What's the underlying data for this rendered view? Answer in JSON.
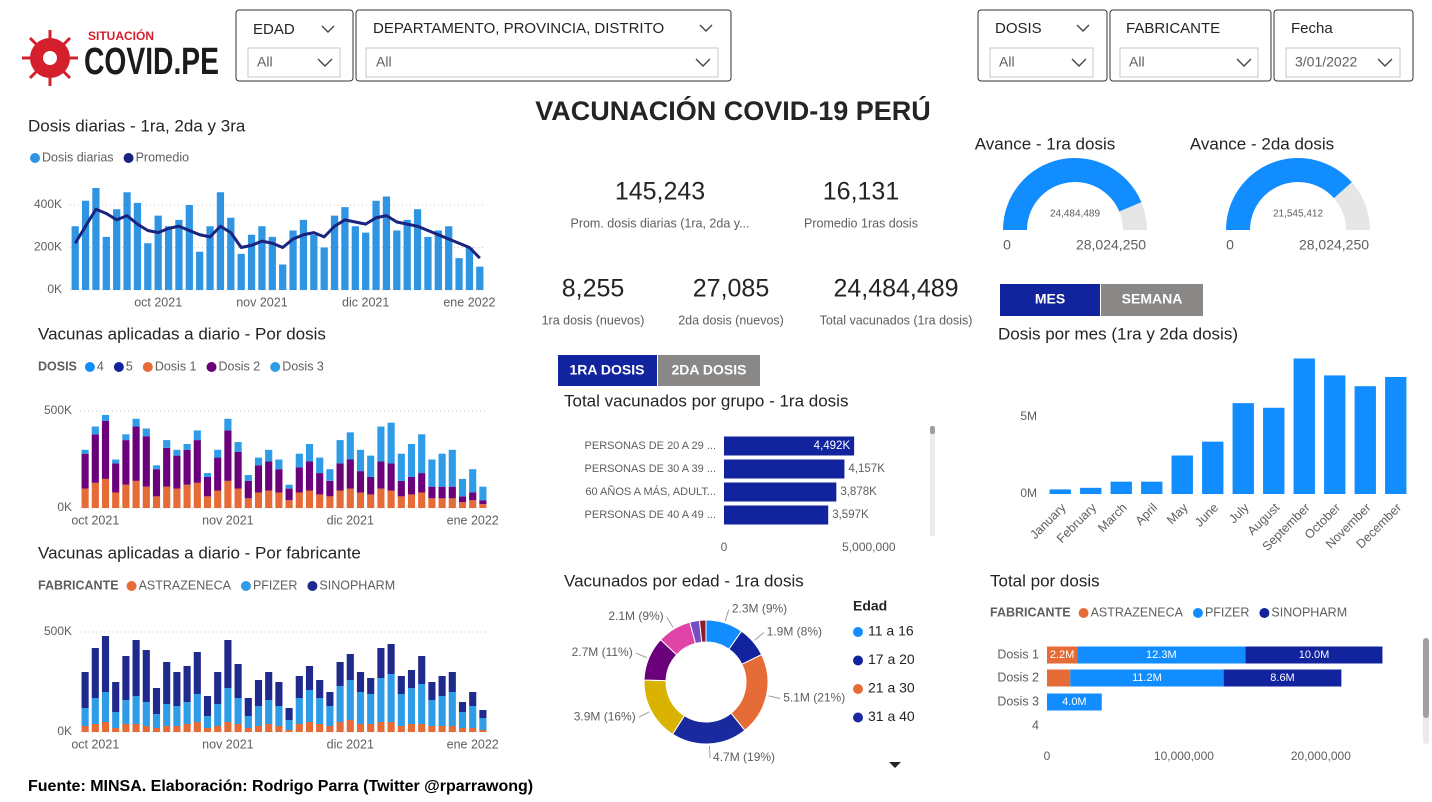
{
  "logo": {
    "small": "SITUACIÓN",
    "big": "COVID.PE"
  },
  "filters": [
    {
      "label": "EDAD",
      "value": "All"
    },
    {
      "label": "DEPARTAMENTO, PROVINCIA, DISTRITO",
      "value": "All"
    },
    {
      "label": "DOSIS",
      "value": "All"
    },
    {
      "label": "FABRICANTE",
      "value": "All"
    },
    {
      "label": "Fecha",
      "value": "3/01/2022"
    }
  ],
  "title": "VACUNACIÓN COVID-19 PERÚ",
  "kpis": [
    {
      "value": "145,243",
      "label": "Prom. dosis diarias (1ra, 2da y..."
    },
    {
      "value": "16,131",
      "label": "Promedio 1ras dosis"
    },
    {
      "value": "8,255",
      "label": "1ra dosis (nuevos)"
    },
    {
      "value": "27,085",
      "label": "2da dosis (nuevos)"
    },
    {
      "value": "24,484,489",
      "label": "Total vacunados (1ra dosis)"
    }
  ],
  "toggles": {
    "period": [
      "MES",
      "SEMANA"
    ],
    "dose": [
      "1RA DOSIS",
      "2DA DOSIS"
    ]
  },
  "footer": "Fuente: MINSA. Elaboración: Rodrigo Parra (Twitter @rparrawong)",
  "chart_data": [
    {
      "type": "bar",
      "title": "Dosis diarias - 1ra, 2da y 3ra",
      "grid": true,
      "categories": [
        null,
        null,
        null,
        null,
        null,
        null,
        null,
        null,
        "oct 2021",
        null,
        null,
        null,
        null,
        null,
        null,
        null,
        null,
        null,
        "nov 2021",
        null,
        null,
        null,
        null,
        null,
        null,
        null,
        null,
        null,
        "dic 2021",
        null,
        null,
        null,
        null,
        null,
        null,
        null,
        null,
        null,
        "ene 2022",
        null
      ],
      "ylim": [
        0,
        520000
      ],
      "yticks": [
        {
          "value": 0,
          "label": "0K"
        },
        {
          "value": 200000,
          "label": "200K"
        },
        {
          "value": 400000,
          "label": "400K"
        }
      ],
      "series": [
        {
          "name": "Dosis diarias",
          "type": "bar",
          "color": "#2F95E3",
          "values": [
            300000,
            420000,
            480000,
            250000,
            380000,
            460000,
            410000,
            220000,
            350000,
            300000,
            330000,
            400000,
            180000,
            300000,
            460000,
            340000,
            170000,
            260000,
            300000,
            250000,
            120000,
            280000,
            330000,
            260000,
            200000,
            350000,
            390000,
            300000,
            270000,
            420000,
            440000,
            280000,
            330000,
            380000,
            250000,
            280000,
            300000,
            150000,
            200000,
            110000
          ]
        },
        {
          "name": "Promedio",
          "type": "line",
          "color": "#1A237E",
          "values": [
            220000,
            300000,
            380000,
            360000,
            330000,
            350000,
            310000,
            280000,
            270000,
            290000,
            300000,
            280000,
            260000,
            250000,
            300000,
            270000,
            200000,
            210000,
            230000,
            220000,
            200000,
            240000,
            260000,
            270000,
            250000,
            300000,
            330000,
            320000,
            310000,
            340000,
            350000,
            320000,
            310000,
            300000,
            280000,
            260000,
            240000,
            220000,
            200000,
            150000
          ]
        }
      ]
    },
    {
      "type": "bar",
      "stacked": true,
      "title": "Vacunas aplicadas a diario - Por dosis",
      "legend_title": "DOSIS",
      "grid": true,
      "categories": [
        null,
        "oct 2021",
        null,
        null,
        null,
        null,
        null,
        null,
        null,
        null,
        null,
        null,
        null,
        null,
        "nov 2021",
        null,
        null,
        null,
        null,
        null,
        null,
        null,
        null,
        null,
        null,
        null,
        "dic 2021",
        null,
        null,
        null,
        null,
        null,
        null,
        null,
        null,
        null,
        null,
        null,
        "ene 2022",
        null
      ],
      "ylim": [
        0,
        580000
      ],
      "yticks": [
        {
          "value": 0,
          "label": "0K"
        },
        {
          "value": 500000,
          "label": "500K"
        }
      ],
      "series": [
        {
          "name": "4",
          "type": "bar",
          "color": "#118DFF",
          "values": [
            0,
            0,
            0,
            0,
            0,
            0,
            0,
            0,
            0,
            0,
            0,
            0,
            0,
            0,
            0,
            0,
            0,
            0,
            0,
            0,
            0,
            0,
            0,
            0,
            0,
            0,
            0,
            0,
            0,
            0,
            0,
            0,
            0,
            0,
            0,
            0,
            0,
            0,
            0,
            0
          ]
        },
        {
          "name": "5",
          "type": "bar",
          "color": "#12239E",
          "values": [
            0,
            0,
            0,
            0,
            0,
            0,
            0,
            0,
            0,
            0,
            0,
            0,
            0,
            0,
            0,
            0,
            0,
            0,
            0,
            0,
            0,
            0,
            0,
            0,
            0,
            0,
            0,
            0,
            0,
            0,
            0,
            0,
            0,
            0,
            0,
            0,
            0,
            0,
            0,
            0
          ]
        },
        {
          "name": "Dosis 1",
          "type": "bar",
          "color": "#E66C37",
          "values": [
            100000,
            130000,
            150000,
            80000,
            120000,
            140000,
            110000,
            60000,
            110000,
            100000,
            120000,
            130000,
            60000,
            90000,
            140000,
            100000,
            50000,
            80000,
            90000,
            80000,
            40000,
            80000,
            90000,
            70000,
            60000,
            90000,
            100000,
            80000,
            70000,
            100000,
            90000,
            60000,
            70000,
            80000,
            50000,
            50000,
            50000,
            30000,
            40000,
            20000
          ]
        },
        {
          "name": "Dosis 2",
          "type": "bar",
          "color": "#6B007B",
          "values": [
            180000,
            250000,
            300000,
            150000,
            230000,
            280000,
            260000,
            140000,
            200000,
            170000,
            180000,
            220000,
            100000,
            170000,
            260000,
            190000,
            90000,
            140000,
            150000,
            120000,
            60000,
            130000,
            150000,
            110000,
            80000,
            140000,
            150000,
            110000,
            90000,
            140000,
            140000,
            80000,
            90000,
            100000,
            60000,
            60000,
            60000,
            30000,
            40000,
            20000
          ]
        },
        {
          "name": "Dosis 3",
          "type": "bar",
          "color": "#2F9CE8",
          "values": [
            20000,
            40000,
            30000,
            20000,
            30000,
            40000,
            40000,
            20000,
            40000,
            30000,
            30000,
            50000,
            20000,
            40000,
            60000,
            50000,
            30000,
            40000,
            60000,
            50000,
            20000,
            70000,
            90000,
            80000,
            60000,
            120000,
            140000,
            110000,
            110000,
            180000,
            210000,
            140000,
            170000,
            200000,
            140000,
            170000,
            190000,
            90000,
            120000,
            70000
          ]
        }
      ]
    },
    {
      "type": "bar",
      "stacked": true,
      "title": "Vacunas aplicadas a diario - Por fabricante",
      "legend_title": "FABRICANTE",
      "grid": true,
      "categories": [
        null,
        "oct 2021",
        null,
        null,
        null,
        null,
        null,
        null,
        null,
        null,
        null,
        null,
        null,
        null,
        "nov 2021",
        null,
        null,
        null,
        null,
        null,
        null,
        null,
        null,
        null,
        null,
        null,
        "dic 2021",
        null,
        null,
        null,
        null,
        null,
        null,
        null,
        null,
        null,
        null,
        null,
        "ene 2022",
        null
      ],
      "ylim": [
        0,
        610000
      ],
      "yticks": [
        {
          "value": 0,
          "label": "0K"
        },
        {
          "value": 500000,
          "label": "500K"
        }
      ],
      "series": [
        {
          "name": "ASTRAZENECA",
          "type": "bar",
          "color": "#E66C37",
          "values": [
            30000,
            40000,
            50000,
            20000,
            40000,
            40000,
            30000,
            20000,
            30000,
            30000,
            40000,
            50000,
            20000,
            30000,
            50000,
            40000,
            20000,
            30000,
            40000,
            30000,
            10000,
            40000,
            50000,
            40000,
            30000,
            50000,
            60000,
            40000,
            40000,
            50000,
            50000,
            30000,
            40000,
            40000,
            30000,
            30000,
            30000,
            20000,
            20000,
            10000
          ]
        },
        {
          "name": "PFIZER",
          "type": "bar",
          "color": "#2F9CE8",
          "values": [
            90000,
            130000,
            150000,
            80000,
            120000,
            140000,
            120000,
            70000,
            110000,
            100000,
            110000,
            140000,
            60000,
            110000,
            170000,
            130000,
            60000,
            100000,
            120000,
            100000,
            50000,
            130000,
            160000,
            130000,
            100000,
            180000,
            200000,
            160000,
            150000,
            220000,
            240000,
            160000,
            180000,
            200000,
            130000,
            150000,
            170000,
            80000,
            110000,
            60000
          ]
        },
        {
          "name": "SINOPHARM",
          "type": "bar",
          "color": "#1F2A8C",
          "values": [
            180000,
            250000,
            280000,
            150000,
            220000,
            280000,
            260000,
            130000,
            210000,
            170000,
            180000,
            210000,
            100000,
            160000,
            240000,
            170000,
            90000,
            130000,
            140000,
            120000,
            60000,
            110000,
            120000,
            90000,
            70000,
            120000,
            130000,
            100000,
            80000,
            150000,
            150000,
            90000,
            90000,
            140000,
            90000,
            100000,
            100000,
            50000,
            70000,
            40000
          ]
        }
      ]
    },
    {
      "type": "gauge",
      "title": "Avance - 1ra dosis",
      "values": [
        24484489
      ],
      "value_labels": [
        "24,484,489"
      ],
      "ylim": [
        0,
        28024250
      ],
      "yticks": [
        0,
        {
          "value": 28024250,
          "label": "28,024,250"
        }
      ],
      "color": "#118DFF",
      "track_color": "#E6E6E6"
    },
    {
      "type": "gauge",
      "title": "Avance - 2da dosis",
      "values": [
        21545412
      ],
      "value_labels": [
        "21,545,412"
      ],
      "ylim": [
        0,
        28024250
      ],
      "yticks": [
        0,
        {
          "value": 28024250,
          "label": "28,024,250"
        }
      ],
      "color": "#118DFF",
      "track_color": "#E6E6E6"
    },
    {
      "type": "bar",
      "title": "Dosis por mes (1ra y 2da dosis)",
      "color": "#118DFF",
      "categories": [
        "January",
        "February",
        "March",
        "April",
        "May",
        "June",
        "July",
        "August",
        "September",
        "October",
        "November",
        "December"
      ],
      "values": [
        300000,
        400000,
        800000,
        800000,
        2500000,
        3400000,
        5900000,
        5600000,
        8800000,
        7700000,
        7000000,
        7600000
      ],
      "ylim": [
        0,
        9000000
      ],
      "yticks": [
        {
          "value": 0,
          "label": "0M"
        },
        {
          "value": 5000000,
          "label": "5M"
        }
      ]
    },
    {
      "type": "hbar",
      "title": "Total vacunados por grupo - 1ra dosis",
      "color": "#12239E",
      "categories": [
        "PERSONAS DE 20 A 29 ...",
        "PERSONAS DE 30 A 39 ...",
        "60 AÑOS A MÁS, ADULT...",
        "PERSONAS DE 40 A 49 ..."
      ],
      "values": [
        4492000,
        4157000,
        3878000,
        3597000
      ],
      "value_labels": [
        "4,492K",
        "4,157K",
        "3,878K",
        "3,597K"
      ],
      "xlim": [
        0,
        6800000
      ],
      "xticks": [
        0,
        {
          "value": 5000000,
          "label": "5,000,000"
        }
      ]
    },
    {
      "type": "donut",
      "title": "Vacunados por edad - 1ra dosis",
      "legend_title": "Edad",
      "categories": [
        "11 a 16",
        "17 a 20",
        "21 a 30",
        "31 a 40",
        null,
        null,
        null,
        null,
        null
      ],
      "values": [
        2300000,
        1900000,
        5100000,
        4700000,
        3900000,
        2700000,
        2100000,
        600000,
        400000
      ],
      "value_labels": [
        "2.3M (9%)",
        "1.9M (8%)",
        "5.1M (21%)",
        "4.7M (19%)",
        "3.9M (16%)",
        "2.7M (11%)",
        "2.1M (9%)",
        null,
        null
      ],
      "colors": [
        "#118DFF",
        "#12239E",
        "#E66C37",
        "#1A2A9E",
        "#D9B300",
        "#6B007B",
        "#E044A7",
        "#744EC2",
        "#8B1E2B"
      ]
    },
    {
      "type": "hbar",
      "stacked": true,
      "title": "Total por dosis",
      "legend_title": "FABRICANTE",
      "categories": [
        "Dosis 1",
        "Dosis 2",
        "Dosis 3",
        "4"
      ],
      "xlim": [
        0,
        26000000
      ],
      "xticks": [
        0,
        {
          "value": 10000000,
          "label": "10,000,000"
        },
        {
          "value": 20000000,
          "label": "20,000,000"
        }
      ],
      "series": [
        {
          "name": "ASTRAZENECA",
          "color": "#E66C37",
          "values": [
            2200000,
            1700000,
            null,
            null
          ],
          "value_labels": [
            "2.2M",
            null,
            null,
            null
          ]
        },
        {
          "name": "PFIZER",
          "color": "#118DFF",
          "values": [
            12300000,
            11200000,
            4000000,
            null
          ],
          "value_labels": [
            "12.3M",
            "11.2M",
            "4.0M",
            null
          ]
        },
        {
          "name": "SINOPHARM",
          "color": "#12239E",
          "values": [
            10000000,
            8600000,
            null,
            null
          ],
          "value_labels": [
            "10.0M",
            "8.6M",
            null,
            null
          ]
        }
      ]
    }
  ]
}
